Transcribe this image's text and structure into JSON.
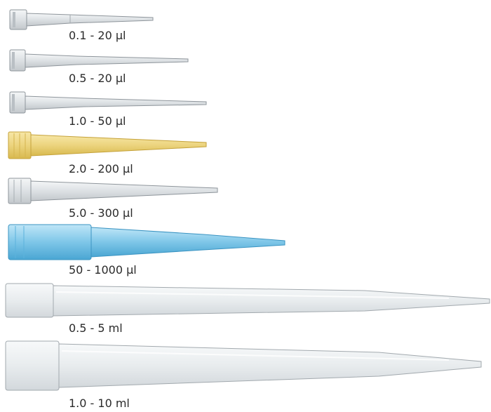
{
  "tips": [
    {
      "label": "0.1 - 20 µl",
      "color": "#c8ccd0"
    },
    {
      "label": "0.5 - 20 µl",
      "color": "#c8ccd0"
    },
    {
      "label": "1.0 - 50 µl",
      "color": "#c8ccd0"
    },
    {
      "label": "2.0 - 200 µl",
      "color": "#ecd47e"
    },
    {
      "label": "5.0 - 300 µl",
      "color": "#c8ccd0"
    },
    {
      "label": "50 - 1000 µl",
      "color": "#7ec6e8"
    },
    {
      "label": "0.5 - 5 ml",
      "color": "#dfe3e6"
    },
    {
      "label": "1.0 - 10 ml",
      "color": "#dfe3e6"
    }
  ]
}
